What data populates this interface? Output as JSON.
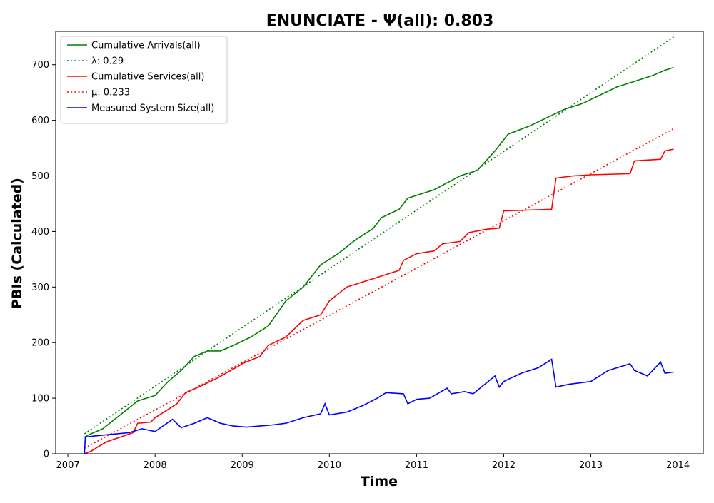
{
  "chart_data": {
    "type": "line",
    "title": "ENUNCIATE -  Ψ(all): 0.803",
    "xlabel": "Time",
    "ylabel": "PBIs (Calculated)",
    "xlim": [
      2006.86,
      2014.29
    ],
    "ylim": [
      0,
      760
    ],
    "x_ticks": [
      {
        "value": 2007,
        "label": "2007"
      },
      {
        "value": 2008,
        "label": "2008"
      },
      {
        "value": 2009,
        "label": "2009"
      },
      {
        "value": 2010,
        "label": "2010"
      },
      {
        "value": 2011,
        "label": "2011"
      },
      {
        "value": 2012,
        "label": "2012"
      },
      {
        "value": 2013,
        "label": "2013"
      },
      {
        "value": 2014,
        "label": "2014"
      }
    ],
    "y_ticks": [
      {
        "value": 0,
        "label": "0"
      },
      {
        "value": 100,
        "label": "100"
      },
      {
        "value": 200,
        "label": "200"
      },
      {
        "value": 300,
        "label": "300"
      },
      {
        "value": 400,
        "label": "400"
      },
      {
        "value": 500,
        "label": "500"
      },
      {
        "value": 600,
        "label": "600"
      },
      {
        "value": 700,
        "label": "700"
      }
    ],
    "grid": false,
    "legend_position": "upper-left",
    "series": [
      {
        "name": "Cumulative Arrivals(all)",
        "color": "#008000",
        "style": "solid",
        "x": [
          2007.19,
          2007.25,
          2007.4,
          2007.6,
          2007.8,
          2008.0,
          2008.15,
          2008.3,
          2008.45,
          2008.6,
          2008.75,
          2008.9,
          2009.1,
          2009.3,
          2009.5,
          2009.7,
          2009.9,
          2010.1,
          2010.3,
          2010.5,
          2010.6,
          2010.8,
          2010.9,
          2011.2,
          2011.5,
          2011.7,
          2011.9,
          2012.05,
          2012.3,
          2012.5,
          2012.7,
          2012.9,
          2013.1,
          2013.3,
          2013.5,
          2013.7,
          2013.85,
          2013.95
        ],
        "y": [
          30,
          35,
          45,
          70,
          95,
          105,
          130,
          150,
          175,
          185,
          185,
          195,
          210,
          230,
          275,
          300,
          340,
          360,
          385,
          405,
          425,
          440,
          460,
          475,
          500,
          510,
          545,
          575,
          590,
          605,
          620,
          630,
          645,
          660,
          670,
          680,
          690,
          695
        ]
      },
      {
        "name": "λ: 0.29",
        "color": "#008000",
        "style": "dotted",
        "x": [
          2007.19,
          2013.95
        ],
        "y": [
          36,
          750
        ]
      },
      {
        "name": "Cumulative Services(all)",
        "color": "#ff0000",
        "style": "solid",
        "x": [
          2007.19,
          2007.27,
          2007.35,
          2007.45,
          2007.6,
          2007.75,
          2007.8,
          2007.95,
          2008.0,
          2008.25,
          2008.35,
          2008.5,
          2008.7,
          2008.95,
          2009.0,
          2009.2,
          2009.3,
          2009.5,
          2009.6,
          2009.7,
          2009.9,
          2010.0,
          2010.2,
          2010.4,
          2010.6,
          2010.8,
          2010.85,
          2011.0,
          2011.2,
          2011.3,
          2011.5,
          2011.6,
          2011.8,
          2011.95,
          2012.0,
          2012.55,
          2012.6,
          2012.8,
          2013.0,
          2013.45,
          2013.5,
          2013.8,
          2013.85,
          2013.95
        ],
        "y": [
          0,
          5,
          13,
          22,
          30,
          38,
          55,
          57,
          65,
          90,
          110,
          120,
          135,
          157,
          162,
          175,
          195,
          210,
          225,
          240,
          250,
          275,
          300,
          310,
          320,
          330,
          348,
          360,
          365,
          378,
          382,
          398,
          404,
          406,
          437,
          440,
          496,
          500,
          502,
          504,
          527,
          530,
          545,
          548
        ]
      },
      {
        "name": "μ: 0.233",
        "color": "#ff0000",
        "style": "dotted",
        "x": [
          2007.19,
          2013.95
        ],
        "y": [
          10,
          585
        ]
      },
      {
        "name": "Measured System Size(all)",
        "color": "#0000ff",
        "style": "solid",
        "x": [
          2007.19,
          2007.2,
          2007.3,
          2007.5,
          2007.7,
          2007.85,
          2008.0,
          2008.2,
          2008.3,
          2008.45,
          2008.6,
          2008.75,
          2008.9,
          2009.05,
          2009.2,
          2009.35,
          2009.5,
          2009.7,
          2009.9,
          2009.95,
          2010.0,
          2010.2,
          2010.4,
          2010.55,
          2010.65,
          2010.85,
          2010.9,
          2011.0,
          2011.15,
          2011.35,
          2011.4,
          2011.55,
          2011.65,
          2011.9,
          2011.95,
          2012.0,
          2012.2,
          2012.4,
          2012.55,
          2012.6,
          2012.75,
          2013.0,
          2013.2,
          2013.45,
          2013.5,
          2013.65,
          2013.8,
          2013.85,
          2013.95
        ],
        "y": [
          0,
          30,
          32,
          35,
          38,
          45,
          40,
          62,
          47,
          55,
          65,
          55,
          50,
          48,
          50,
          52,
          55,
          65,
          72,
          90,
          70,
          75,
          88,
          100,
          110,
          108,
          90,
          98,
          100,
          118,
          108,
          112,
          108,
          140,
          120,
          130,
          145,
          155,
          170,
          120,
          125,
          130,
          150,
          162,
          150,
          140,
          165,
          145,
          147
        ]
      }
    ]
  }
}
